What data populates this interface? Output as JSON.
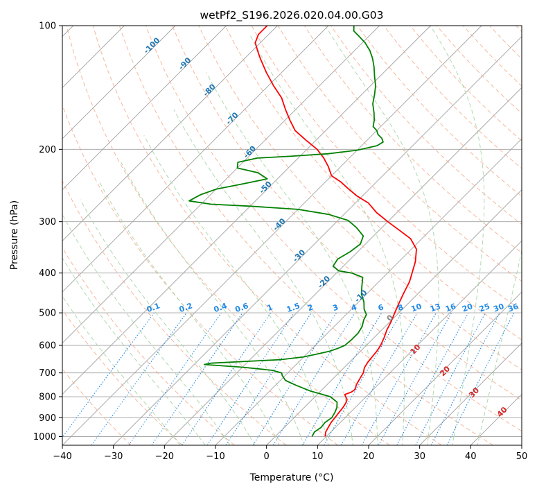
{
  "chart_data": {
    "type": "line",
    "title": "wetPf2_S196.2026.020.04.00.G03",
    "xlabel": "Temperature (°C)",
    "ylabel": "Pressure (hPa)",
    "xlim": [
      -40,
      50
    ],
    "ylim": [
      1050,
      100
    ],
    "y_scale": "log",
    "grid": true,
    "x_ticks": [
      -40,
      -30,
      -20,
      -10,
      0,
      10,
      20,
      30,
      40,
      50
    ],
    "y_ticks": [
      1000,
      900,
      800,
      700,
      600,
      500,
      400,
      300,
      200,
      100
    ],
    "skew_t": true,
    "colors": {
      "temperature": "#ff0000",
      "dewpoint": "#008000",
      "isotherm": "#a0a0a0",
      "dry_adiabat": "#f4a582",
      "moist_adiabat": "#a6d4a6",
      "mixing_ratio": "#1e88e5",
      "isotherm_label": "#1f77b4",
      "dry_label": "#d62728"
    },
    "series": [
      {
        "key": "temperature",
        "points": [
          [
            9.8,
            1000
          ],
          [
            9.0,
            975
          ],
          [
            8.6,
            950
          ],
          [
            8.2,
            925
          ],
          [
            8.0,
            900
          ],
          [
            7.8,
            875
          ],
          [
            7.6,
            850
          ],
          [
            7.2,
            825
          ],
          [
            6.8,
            812
          ],
          [
            6.0,
            800
          ],
          [
            5.4,
            790
          ],
          [
            6.2,
            780
          ],
          [
            6.4,
            770
          ],
          [
            6.2,
            760
          ],
          [
            5.8,
            750
          ],
          [
            5.6,
            740
          ],
          [
            5.2,
            720
          ],
          [
            4.8,
            700
          ],
          [
            4.0,
            680
          ],
          [
            3.6,
            660
          ],
          [
            3.4,
            640
          ],
          [
            3.2,
            620
          ],
          [
            2.8,
            600
          ],
          [
            2.0,
            575
          ],
          [
            1.0,
            550
          ],
          [
            0.2,
            525
          ],
          [
            -0.8,
            500
          ],
          [
            -1.8,
            475
          ],
          [
            -2.8,
            450
          ],
          [
            -4.0,
            420
          ],
          [
            -5.2,
            400
          ],
          [
            -6.8,
            375
          ],
          [
            -9.0,
            350
          ],
          [
            -12.2,
            330
          ],
          [
            -16.0,
            315
          ],
          [
            -20.0,
            300
          ],
          [
            -24.0,
            285
          ],
          [
            -27.5,
            270
          ],
          [
            -31.0,
            260
          ],
          [
            -34.0,
            250
          ],
          [
            -37.0,
            240
          ],
          [
            -40.0,
            232
          ],
          [
            -42.5,
            220
          ],
          [
            -45.0,
            210
          ],
          [
            -48.0,
            200
          ],
          [
            -52.0,
            190
          ],
          [
            -56.0,
            180
          ],
          [
            -59.0,
            170
          ],
          [
            -62.0,
            160
          ],
          [
            -65.0,
            150
          ],
          [
            -69.0,
            140
          ],
          [
            -73.0,
            130
          ],
          [
            -77.0,
            120
          ],
          [
            -79.0,
            115
          ],
          [
            -81.0,
            110
          ],
          [
            -82.0,
            105
          ],
          [
            -82.0,
            100
          ]
        ]
      },
      {
        "key": "dewpoint",
        "points": [
          [
            7.2,
            1000
          ],
          [
            6.8,
            975
          ],
          [
            7.2,
            950
          ],
          [
            7.0,
            925
          ],
          [
            7.4,
            900
          ],
          [
            7.0,
            875
          ],
          [
            6.4,
            850
          ],
          [
            5.4,
            825
          ],
          [
            3.0,
            800
          ],
          [
            -2.0,
            775
          ],
          [
            -6.0,
            750
          ],
          [
            -9.0,
            730
          ],
          [
            -10.6,
            710
          ],
          [
            -11.2,
            700
          ],
          [
            -13.5,
            690
          ],
          [
            -20.0,
            678
          ],
          [
            -28.0,
            668
          ],
          [
            -27.0,
            663
          ],
          [
            -14.0,
            650
          ],
          [
            -10.0,
            640
          ],
          [
            -8.0,
            630
          ],
          [
            -6.0,
            620
          ],
          [
            -5.0,
            610
          ],
          [
            -4.2,
            600
          ],
          [
            -4.0,
            580
          ],
          [
            -4.0,
            560
          ],
          [
            -4.5,
            540
          ],
          [
            -5.5,
            520
          ],
          [
            -6.0,
            505
          ],
          [
            -7.5,
            490
          ],
          [
            -9.0,
            470
          ],
          [
            -11.0,
            450
          ],
          [
            -12.5,
            430
          ],
          [
            -14.0,
            410
          ],
          [
            -17.0,
            400
          ],
          [
            -20.0,
            395
          ],
          [
            -22.0,
            385
          ],
          [
            -22.5,
            370
          ],
          [
            -21.5,
            355
          ],
          [
            -21.0,
            340
          ],
          [
            -22.0,
            325
          ],
          [
            -25.0,
            310
          ],
          [
            -28.0,
            298
          ],
          [
            -33.0,
            288
          ],
          [
            -40.0,
            280
          ],
          [
            -50.0,
            275
          ],
          [
            -58.0,
            272
          ],
          [
            -63.0,
            267
          ],
          [
            -62.0,
            258
          ],
          [
            -60.0,
            250
          ],
          [
            -56.0,
            243
          ],
          [
            -52.0,
            236
          ],
          [
            -55.0,
            228
          ],
          [
            -60.0,
            222
          ],
          [
            -61.0,
            215
          ],
          [
            -58.0,
            210
          ],
          [
            -52.0,
            208
          ],
          [
            -45.0,
            205
          ],
          [
            -40.0,
            201
          ],
          [
            -37.0,
            196
          ],
          [
            -36.5,
            192
          ],
          [
            -37.5,
            188
          ],
          [
            -39.0,
            184
          ],
          [
            -40.0,
            180
          ],
          [
            -41.5,
            176
          ],
          [
            -42.5,
            170
          ],
          [
            -44.0,
            163
          ],
          [
            -46.0,
            155
          ],
          [
            -47.5,
            147
          ],
          [
            -49.0,
            140
          ],
          [
            -51.0,
            133
          ],
          [
            -53.0,
            126
          ],
          [
            -55.0,
            120
          ],
          [
            -57.0,
            115
          ],
          [
            -59.5,
            110
          ],
          [
            -62.0,
            106
          ],
          [
            -64.0,
            103
          ],
          [
            -65.0,
            100
          ]
        ]
      }
    ],
    "isotherm_labels": [
      "-100",
      "-90",
      "-80",
      "-70",
      "-60",
      "-50",
      "-40",
      "-30",
      "-20",
      "-10",
      "0"
    ],
    "isotherm_label_values": [
      -100,
      -90,
      -80,
      -70,
      -60,
      -50,
      -40,
      -30,
      -20,
      -10,
      0
    ],
    "dry_adiabat_labels": [
      "10",
      "20",
      "30",
      "40"
    ],
    "mixing_ratio_labels": [
      "0.1",
      "0.2",
      "0.4",
      "0.6",
      "1",
      "1.5",
      "2",
      "3",
      "4",
      "6",
      "8",
      "10",
      "13",
      "16",
      "20",
      "25",
      "30",
      "36"
    ],
    "mixing_ratio_values": [
      0.1,
      0.2,
      0.4,
      0.6,
      1,
      1.5,
      2,
      3,
      4,
      6,
      8,
      10,
      13,
      16,
      20,
      25,
      30,
      36
    ]
  }
}
